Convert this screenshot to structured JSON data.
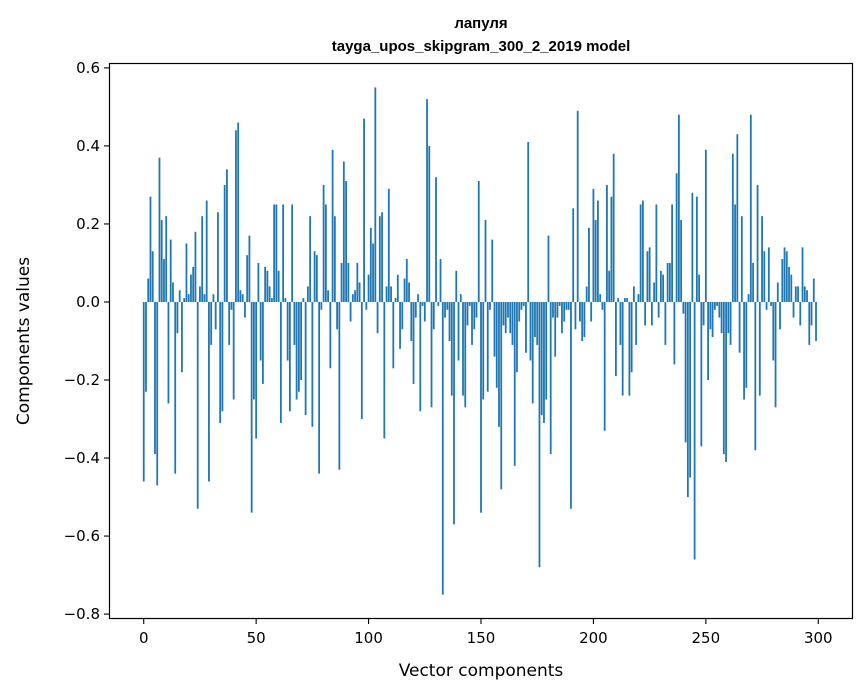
{
  "chart_data": {
    "type": "bar",
    "title": "лапуля",
    "subtitle": "tayga_upos_skipgram_300_2_2019 model",
    "xlabel": "Vector components",
    "ylabel": "Components values",
    "xlim": [
      -15,
      315
    ],
    "ylim": [
      -0.81,
      0.61
    ],
    "xticks": [
      0,
      50,
      100,
      150,
      200,
      250,
      300
    ],
    "xtick_labels": [
      "0",
      "50",
      "100",
      "150",
      "200",
      "250",
      "300"
    ],
    "yticks": [
      -0.8,
      -0.6,
      -0.4,
      -0.2,
      0.0,
      0.2,
      0.4,
      0.6
    ],
    "ytick_labels": [
      "−0.8",
      "−0.6",
      "−0.4",
      "−0.2",
      "0.0",
      "0.2",
      "0.4",
      "0.6"
    ],
    "bar_color": "#1f77b4",
    "values": [
      -0.46,
      -0.23,
      0.06,
      0.27,
      0.13,
      -0.39,
      -0.47,
      0.37,
      0.21,
      0.11,
      0.22,
      -0.26,
      0.16,
      0.05,
      -0.44,
      -0.08,
      0.03,
      -0.18,
      0.01,
      0.15,
      0.02,
      0.07,
      0.09,
      0.18,
      -0.53,
      0.04,
      0.22,
      0.02,
      0.26,
      -0.46,
      -0.11,
      0.02,
      -0.07,
      0.23,
      -0.31,
      -0.28,
      0.3,
      0.34,
      -0.11,
      -0.02,
      -0.25,
      0.44,
      0.46,
      0.03,
      0.02,
      -0.04,
      0.12,
      0.17,
      -0.54,
      -0.25,
      -0.35,
      0.1,
      -0.15,
      -0.21,
      0.09,
      0.08,
      0.04,
      0.01,
      0.25,
      0.25,
      0.08,
      -0.31,
      0.25,
      0.01,
      -0.15,
      -0.28,
      0.25,
      -0.11,
      -0.25,
      -0.23,
      -0.2,
      0.01,
      -0.29,
      0.04,
      0.22,
      -0.32,
      0.13,
      0.12,
      -0.44,
      -0.02,
      0.3,
      0.25,
      0.03,
      -0.17,
      0.39,
      0.22,
      -0.07,
      -0.43,
      0.1,
      0.36,
      0.31,
      0.1,
      -0.05,
      0.02,
      0.03,
      0.1,
      0.05,
      -0.3,
      0.47,
      -0.02,
      0.07,
      0.19,
      0.15,
      0.55,
      -0.08,
      0.22,
      0.23,
      -0.35,
      0.04,
      0.29,
      0.04,
      -0.17,
      0.01,
      0.07,
      -0.12,
      -0.07,
      0.06,
      0.11,
      0.05,
      -0.1,
      -0.21,
      -0.04,
      0.02,
      -0.28,
      -0.01,
      -0.05,
      0.52,
      0.4,
      -0.27,
      -0.07,
      0.32,
      -0.01,
      0.11,
      -0.75,
      -0.04,
      -0.02,
      -0.1,
      -0.24,
      -0.57,
      0.08,
      -0.15,
      0.02,
      -0.24,
      -0.27,
      -0.06,
      -0.01,
      -0.11,
      -0.07,
      -0.04,
      0.31,
      -0.54,
      -0.25,
      0.21,
      -0.23,
      -0.02,
      0.16,
      -0.14,
      -0.22,
      -0.32,
      -0.48,
      -0.06,
      -0.08,
      -0.04,
      -0.08,
      -0.11,
      -0.42,
      -0.18,
      -0.05,
      -0.02,
      -0.01,
      -0.13,
      0.41,
      -0.15,
      -0.26,
      -0.09,
      -0.11,
      -0.68,
      -0.29,
      -0.31,
      -0.25,
      0.17,
      -0.39,
      -0.04,
      -0.14,
      -0.04,
      -0.01,
      -0.08,
      -0.05,
      -0.02,
      -0.02,
      -0.53,
      0.24,
      -0.07,
      0.49,
      -0.05,
      -0.1,
      -0.09,
      0.04,
      0.19,
      -0.05,
      0.29,
      0.21,
      0.26,
      0.02,
      -0.02,
      -0.33,
      0.3,
      0.08,
      0.27,
      0.38,
      -0.19,
      0.01,
      -0.11,
      -0.24,
      0.01,
      0.01,
      -0.24,
      -0.18,
      0.04,
      -0.11,
      0.02,
      0.25,
      0.26,
      -0.06,
      0.13,
      0.14,
      -0.06,
      0.05,
      0.25,
      -0.04,
      0.08,
      0.07,
      -0.11,
      0.1,
      0.1,
      0.25,
      -0.16,
      0.33,
      0.48,
      0.21,
      -0.03,
      -0.36,
      -0.5,
      -0.45,
      0.28,
      -0.66,
      0.27,
      0.07,
      -0.37,
      -0.06,
      0.39,
      -0.2,
      -0.07,
      -0.09,
      -0.02,
      -0.01,
      -0.04,
      -0.08,
      -0.39,
      -0.41,
      -0.08,
      -0.11,
      0.38,
      0.25,
      0.43,
      -0.13,
      0.22,
      -0.25,
      -0.22,
      0.02,
      0.48,
      0.1,
      -0.38,
      0.3,
      -0.24,
      0.22,
      0.13,
      -0.02,
      0.14,
      -0.01,
      -0.15,
      -0.27,
      0.05,
      -0.07,
      0.11,
      0.14,
      0.13,
      0.09,
      0.07,
      -0.04,
      0.04,
      0.04,
      -0.06,
      0.14,
      0.04,
      0.03,
      -0.11,
      -0.06,
      0.06,
      -0.1
    ]
  }
}
